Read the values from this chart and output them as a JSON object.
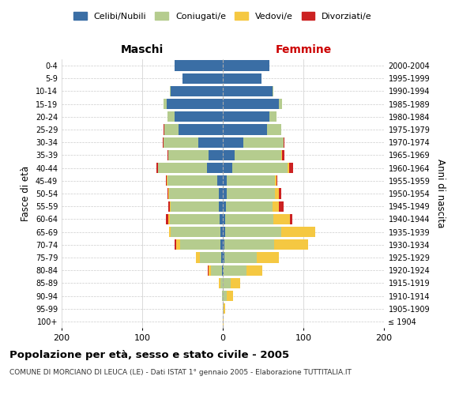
{
  "age_groups": [
    "100+",
    "95-99",
    "90-94",
    "85-89",
    "80-84",
    "75-79",
    "70-74",
    "65-69",
    "60-64",
    "55-59",
    "50-54",
    "45-49",
    "40-44",
    "35-39",
    "30-34",
    "25-29",
    "20-24",
    "15-19",
    "10-14",
    "5-9",
    "0-4"
  ],
  "birth_years": [
    "≤ 1904",
    "1905-1909",
    "1910-1914",
    "1915-1919",
    "1920-1924",
    "1925-1929",
    "1930-1934",
    "1935-1939",
    "1940-1944",
    "1945-1949",
    "1950-1954",
    "1955-1959",
    "1960-1964",
    "1965-1969",
    "1970-1974",
    "1975-1979",
    "1980-1984",
    "1985-1989",
    "1990-1994",
    "1995-1999",
    "2000-2004"
  ],
  "colors": {
    "celibi": "#3a6ea5",
    "coniugati": "#b5cc8e",
    "vedovi": "#f5c842",
    "divorziati": "#cc2222"
  },
  "maschi_celibi": [
    0,
    0,
    0,
    0,
    1,
    2,
    3,
    3,
    4,
    5,
    5,
    7,
    20,
    18,
    30,
    55,
    60,
    70,
    65,
    50,
    60
  ],
  "maschi_coniugati": [
    0,
    0,
    1,
    3,
    14,
    26,
    50,
    62,
    62,
    60,
    62,
    62,
    60,
    50,
    44,
    18,
    9,
    4,
    1,
    0,
    0
  ],
  "maschi_vedovi": [
    0,
    0,
    0,
    2,
    3,
    5,
    5,
    2,
    2,
    1,
    1,
    1,
    0,
    0,
    0,
    0,
    0,
    0,
    0,
    0,
    0
  ],
  "maschi_divorziati": [
    0,
    0,
    0,
    0,
    1,
    0,
    2,
    0,
    3,
    2,
    1,
    1,
    2,
    1,
    1,
    1,
    0,
    0,
    0,
    0,
    0
  ],
  "femmine_celibi": [
    0,
    0,
    0,
    0,
    1,
    2,
    2,
    3,
    3,
    4,
    5,
    5,
    12,
    15,
    25,
    55,
    58,
    70,
    62,
    48,
    58
  ],
  "femmine_coniugati": [
    0,
    1,
    5,
    10,
    28,
    40,
    62,
    70,
    60,
    58,
    60,
    60,
    68,
    58,
    50,
    18,
    9,
    4,
    1,
    0,
    0
  ],
  "femmine_vedovi": [
    1,
    2,
    8,
    12,
    20,
    28,
    42,
    42,
    20,
    8,
    5,
    2,
    2,
    1,
    0,
    0,
    0,
    0,
    0,
    0,
    0
  ],
  "femmine_divorziati": [
    0,
    0,
    0,
    0,
    0,
    0,
    0,
    0,
    3,
    5,
    3,
    1,
    5,
    2,
    1,
    0,
    0,
    0,
    0,
    0,
    0
  ],
  "xlim": 200,
  "title": "Popolazione per età, sesso e stato civile - 2005",
  "subtitle": "COMUNE DI MORCIANO DI LEUCA (LE) - Dati ISTAT 1° gennaio 2005 - Elaborazione TUTTITALIA.IT",
  "ylabel": "Fasce di età",
  "ylabel_right": "Anni di nascita",
  "xlabel_maschi": "Maschi",
  "xlabel_femmine": "Femmine",
  "legend_labels": [
    "Celibi/Nubili",
    "Coniugati/e",
    "Vedovi/e",
    "Divorziati/e"
  ],
  "xtick_labels": [
    "200",
    "100",
    "0",
    "100",
    "200"
  ],
  "bg_color": "#ffffff",
  "grid_color": "#cccccc",
  "bar_height": 0.82
}
